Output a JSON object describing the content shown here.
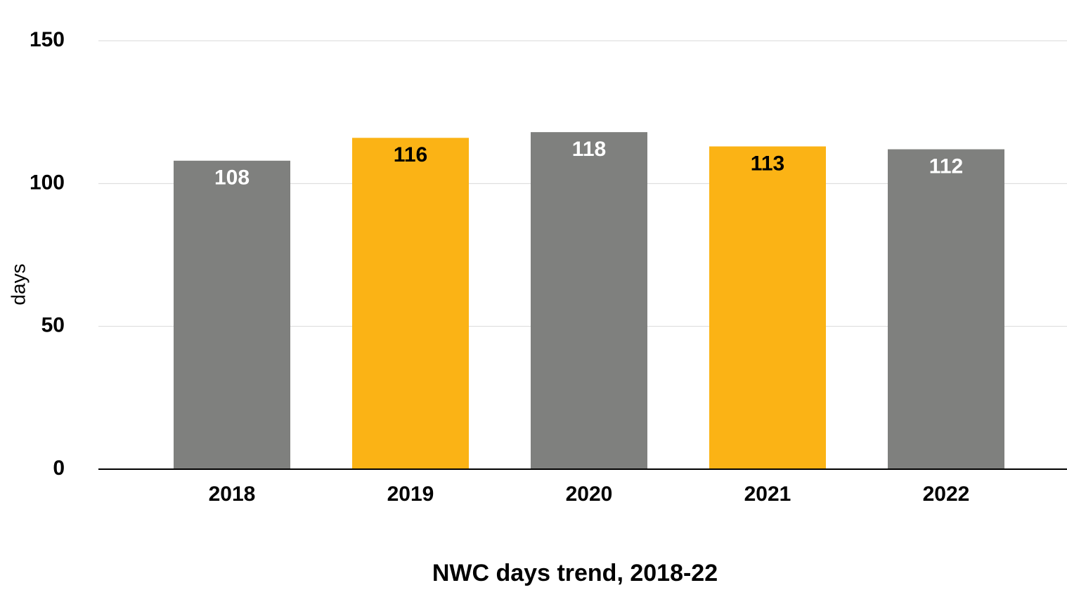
{
  "chart_data": {
    "type": "bar",
    "title": "NWC days trend, 2018-22",
    "y_label": "days",
    "categories": [
      "2018",
      "2019",
      "2020",
      "2021",
      "2022"
    ],
    "values": [
      108,
      116,
      118,
      113,
      112
    ],
    "colors": [
      "#7f807e",
      "#fbb315",
      "#7f807e",
      "#fbb315",
      "#7f807e"
    ],
    "ylim": [
      0,
      150
    ],
    "yticks": [
      0,
      50,
      100,
      150
    ],
    "grid": true
  }
}
